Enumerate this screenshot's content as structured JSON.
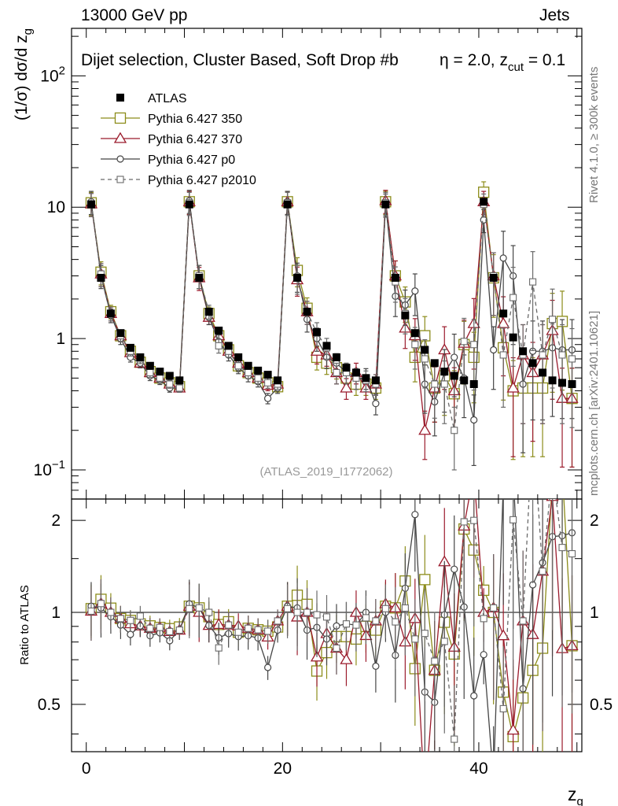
{
  "header": {
    "left": "13000 GeV pp",
    "right": "Jets"
  },
  "side_text": {
    "rivet": "Rivet 4.1.0, ≥ 300k events",
    "mcplots": "mcplots.cern.ch [arXiv:2401.10621]"
  },
  "chart_data": {
    "type": "scatter",
    "title": "Dijet selection, Cluster Based, Soft Drop #b",
    "title_math": {
      "eta_part": "η = 2.0, z",
      "cut_sub": "cut",
      "tail": " = 0.1"
    },
    "analysis_label": "(ATLAS_2019_I1772062)",
    "xlabel": "z",
    "xlabel_sub": "g",
    "ylabel": "(1/σ) dσ/d z",
    "ylabel_sub": "g",
    "ratio_ylabel": "Ratio to ATLAS",
    "xlim": [
      -1.5,
      50.5
    ],
    "ylim": [
      0.06,
      230
    ],
    "yscale": "log",
    "ratio_ylim": [
      0.35,
      2.35
    ],
    "ratio_yscale": "log",
    "x_ticks": [
      "0",
      "20",
      "40"
    ],
    "x_tick_values": [
      0,
      20,
      40
    ],
    "y_ticks": [
      {
        "value": 0.1,
        "base": "10",
        "exp": "−1"
      },
      {
        "value": 1,
        "base": "1",
        "exp": ""
      },
      {
        "value": 10,
        "base": "10",
        "exp": ""
      },
      {
        "value": 100,
        "base": "10",
        "exp": "2"
      }
    ],
    "ratio_ticks": [
      {
        "value": 0.5,
        "label": "0.5"
      },
      {
        "value": 1,
        "label": "1"
      },
      {
        "value": 2,
        "label": "2"
      }
    ],
    "x": [
      0.5,
      1.5,
      2.5,
      3.5,
      4.5,
      5.5,
      6.5,
      7.5,
      8.5,
      9.5,
      10.5,
      11.5,
      12.5,
      13.5,
      14.5,
      15.5,
      16.5,
      17.5,
      18.5,
      19.5,
      20.5,
      21.5,
      22.5,
      23.5,
      24.5,
      25.5,
      26.5,
      27.5,
      28.5,
      29.5,
      30.5,
      31.5,
      32.5,
      33.5,
      34.5,
      35.5,
      36.5,
      37.5,
      38.5,
      39.5,
      40.5,
      41.5,
      42.5,
      43.5,
      44.5,
      45.5,
      46.5,
      47.5,
      48.5,
      49.5
    ],
    "series": [
      {
        "name": "ATLAS",
        "values": [
          10.5,
          2.9,
          1.55,
          1.1,
          0.85,
          0.72,
          0.62,
          0.56,
          0.52,
          0.48,
          10.5,
          2.9,
          1.6,
          1.15,
          0.88,
          0.72,
          0.62,
          0.57,
          0.53,
          0.48,
          10.5,
          2.9,
          1.6,
          1.12,
          0.88,
          0.72,
          0.6,
          0.55,
          0.5,
          0.48,
          10.5,
          2.9,
          1.5,
          1.1,
          0.82,
          0.65,
          0.56,
          0.52,
          0.48,
          0.45,
          11.0,
          2.9,
          1.55,
          1.02,
          0.8,
          0.65,
          0.55,
          0.48,
          0.46,
          0.45
        ],
        "errors": []
      },
      {
        "name": "Pythia 6.427 350",
        "values": [
          10.8,
          3.2,
          1.6,
          1.05,
          0.8,
          0.66,
          0.56,
          0.5,
          0.46,
          0.43,
          11.0,
          3.0,
          1.55,
          1.05,
          0.82,
          0.62,
          0.55,
          0.5,
          0.46,
          0.43,
          11.0,
          3.3,
          1.7,
          0.72,
          0.65,
          0.6,
          0.5,
          0.45,
          0.45,
          0.42,
          11.0,
          3.0,
          1.9,
          0.72,
          1.05,
          0.42,
          0.52,
          0.38,
          0.9,
          0.72,
          13.0,
          2.9,
          0.85,
          0.4,
          0.42,
          0.42,
          0.42,
          1.3,
          1.35,
          0.35
        ],
        "errors": [
          0.2,
          0.2,
          0.12,
          0.1,
          0.08,
          0.08,
          0.08,
          0.07,
          0.07,
          0.07,
          0.2,
          0.2,
          0.12,
          0.12,
          0.1,
          0.1,
          0.1,
          0.09,
          0.09,
          0.09,
          0.2,
          0.25,
          0.2,
          0.2,
          0.18,
          0.18,
          0.18,
          0.18,
          0.18,
          0.18,
          0.2,
          0.3,
          0.3,
          0.35,
          0.4,
          0.45,
          0.5,
          0.5,
          0.5,
          0.55,
          0.2,
          0.5,
          0.6,
          0.7,
          0.7,
          0.7,
          0.7,
          0.7,
          0.7,
          0.7
        ]
      },
      {
        "name": "Pythia 6.427 370",
        "values": [
          10.6,
          3.1,
          1.55,
          1.05,
          0.78,
          0.65,
          0.55,
          0.5,
          0.45,
          0.42,
          11.0,
          2.9,
          1.45,
          1.05,
          0.8,
          0.65,
          0.55,
          0.5,
          0.44,
          0.45,
          11.0,
          2.8,
          1.6,
          0.8,
          0.75,
          0.55,
          0.42,
          0.55,
          0.42,
          0.45,
          11.2,
          3.0,
          1.2,
          1.05,
          0.2,
          0.42,
          0.82,
          0.4,
          0.92,
          1.3,
          11.0,
          3.0,
          1.3,
          0.42,
          0.75,
          0.55,
          0.75,
          1.15,
          0.35,
          0.35
        ],
        "errors": [
          0.2,
          0.2,
          0.12,
          0.1,
          0.08,
          0.08,
          0.08,
          0.07,
          0.07,
          0.07,
          0.2,
          0.2,
          0.12,
          0.12,
          0.1,
          0.1,
          0.1,
          0.09,
          0.09,
          0.09,
          0.2,
          0.25,
          0.2,
          0.2,
          0.18,
          0.18,
          0.18,
          0.18,
          0.18,
          0.18,
          0.2,
          0.3,
          0.3,
          0.35,
          0.4,
          0.45,
          0.5,
          0.5,
          0.5,
          0.55,
          0.2,
          0.5,
          0.6,
          0.7,
          0.7,
          0.7,
          0.7,
          0.7,
          0.7,
          0.7
        ]
      },
      {
        "name": "Pythia 6.427 p0",
        "values": [
          11.0,
          3.0,
          1.5,
          1.0,
          0.72,
          0.65,
          0.52,
          0.48,
          0.42,
          0.42,
          11.2,
          3.0,
          1.45,
          0.95,
          0.75,
          0.6,
          0.52,
          0.47,
          0.35,
          0.42,
          11.0,
          3.0,
          1.4,
          1.0,
          0.72,
          0.65,
          0.55,
          0.5,
          0.5,
          0.32,
          10.5,
          2.1,
          1.8,
          2.3,
          0.45,
          0.33,
          0.55,
          0.72,
          0.5,
          0.24,
          8.0,
          0.82,
          4.1,
          3.0,
          0.45,
          0.8,
          0.8,
          0.85,
          0.82,
          0.82
        ],
        "errors": [
          0.2,
          0.2,
          0.12,
          0.1,
          0.08,
          0.08,
          0.08,
          0.07,
          0.07,
          0.07,
          0.2,
          0.2,
          0.12,
          0.12,
          0.1,
          0.1,
          0.1,
          0.09,
          0.09,
          0.09,
          0.2,
          0.25,
          0.2,
          0.2,
          0.18,
          0.18,
          0.18,
          0.18,
          0.18,
          0.18,
          0.2,
          0.3,
          0.3,
          0.35,
          0.4,
          0.45,
          0.5,
          0.5,
          0.5,
          0.55,
          0.2,
          0.5,
          0.6,
          0.7,
          0.7,
          0.7,
          0.7,
          0.7,
          0.7,
          0.7
        ]
      },
      {
        "name": "Pythia 6.427 p2010",
        "values": [
          10.6,
          3.1,
          1.55,
          1.05,
          0.8,
          0.7,
          0.55,
          0.5,
          0.45,
          0.42,
          10.8,
          3.0,
          1.6,
          0.88,
          0.8,
          0.62,
          0.55,
          0.5,
          0.46,
          0.45,
          10.8,
          2.9,
          1.6,
          1.1,
          0.85,
          0.55,
          0.55,
          0.5,
          0.48,
          0.45,
          10.8,
          2.7,
          1.55,
          0.9,
          0.7,
          0.45,
          0.45,
          0.2,
          0.95,
          0.9,
          10.5,
          3.0,
          0.75,
          2.05,
          0.75,
          2.7,
          0.75,
          1.4,
          0.75,
          0.7
        ],
        "errors": [
          0.2,
          0.2,
          0.12,
          0.1,
          0.08,
          0.08,
          0.08,
          0.07,
          0.07,
          0.07,
          0.2,
          0.2,
          0.12,
          0.12,
          0.1,
          0.1,
          0.1,
          0.09,
          0.09,
          0.09,
          0.2,
          0.25,
          0.2,
          0.2,
          0.18,
          0.18,
          0.18,
          0.18,
          0.18,
          0.18,
          0.2,
          0.3,
          0.3,
          0.35,
          0.4,
          0.45,
          0.5,
          0.5,
          0.5,
          0.55,
          0.2,
          0.5,
          0.6,
          0.7,
          0.7,
          0.7,
          0.7,
          0.7,
          0.7,
          0.7
        ]
      }
    ],
    "legend_placement": "top-left",
    "colors": {
      "ATLAS": "#000000",
      "Pythia 6.427 350": "#8c8c1a",
      "Pythia 6.427 370": "#9b1b2c",
      "Pythia 6.427 p0": "#454545",
      "Pythia 6.427 p2010": "#6a6a6a"
    }
  }
}
